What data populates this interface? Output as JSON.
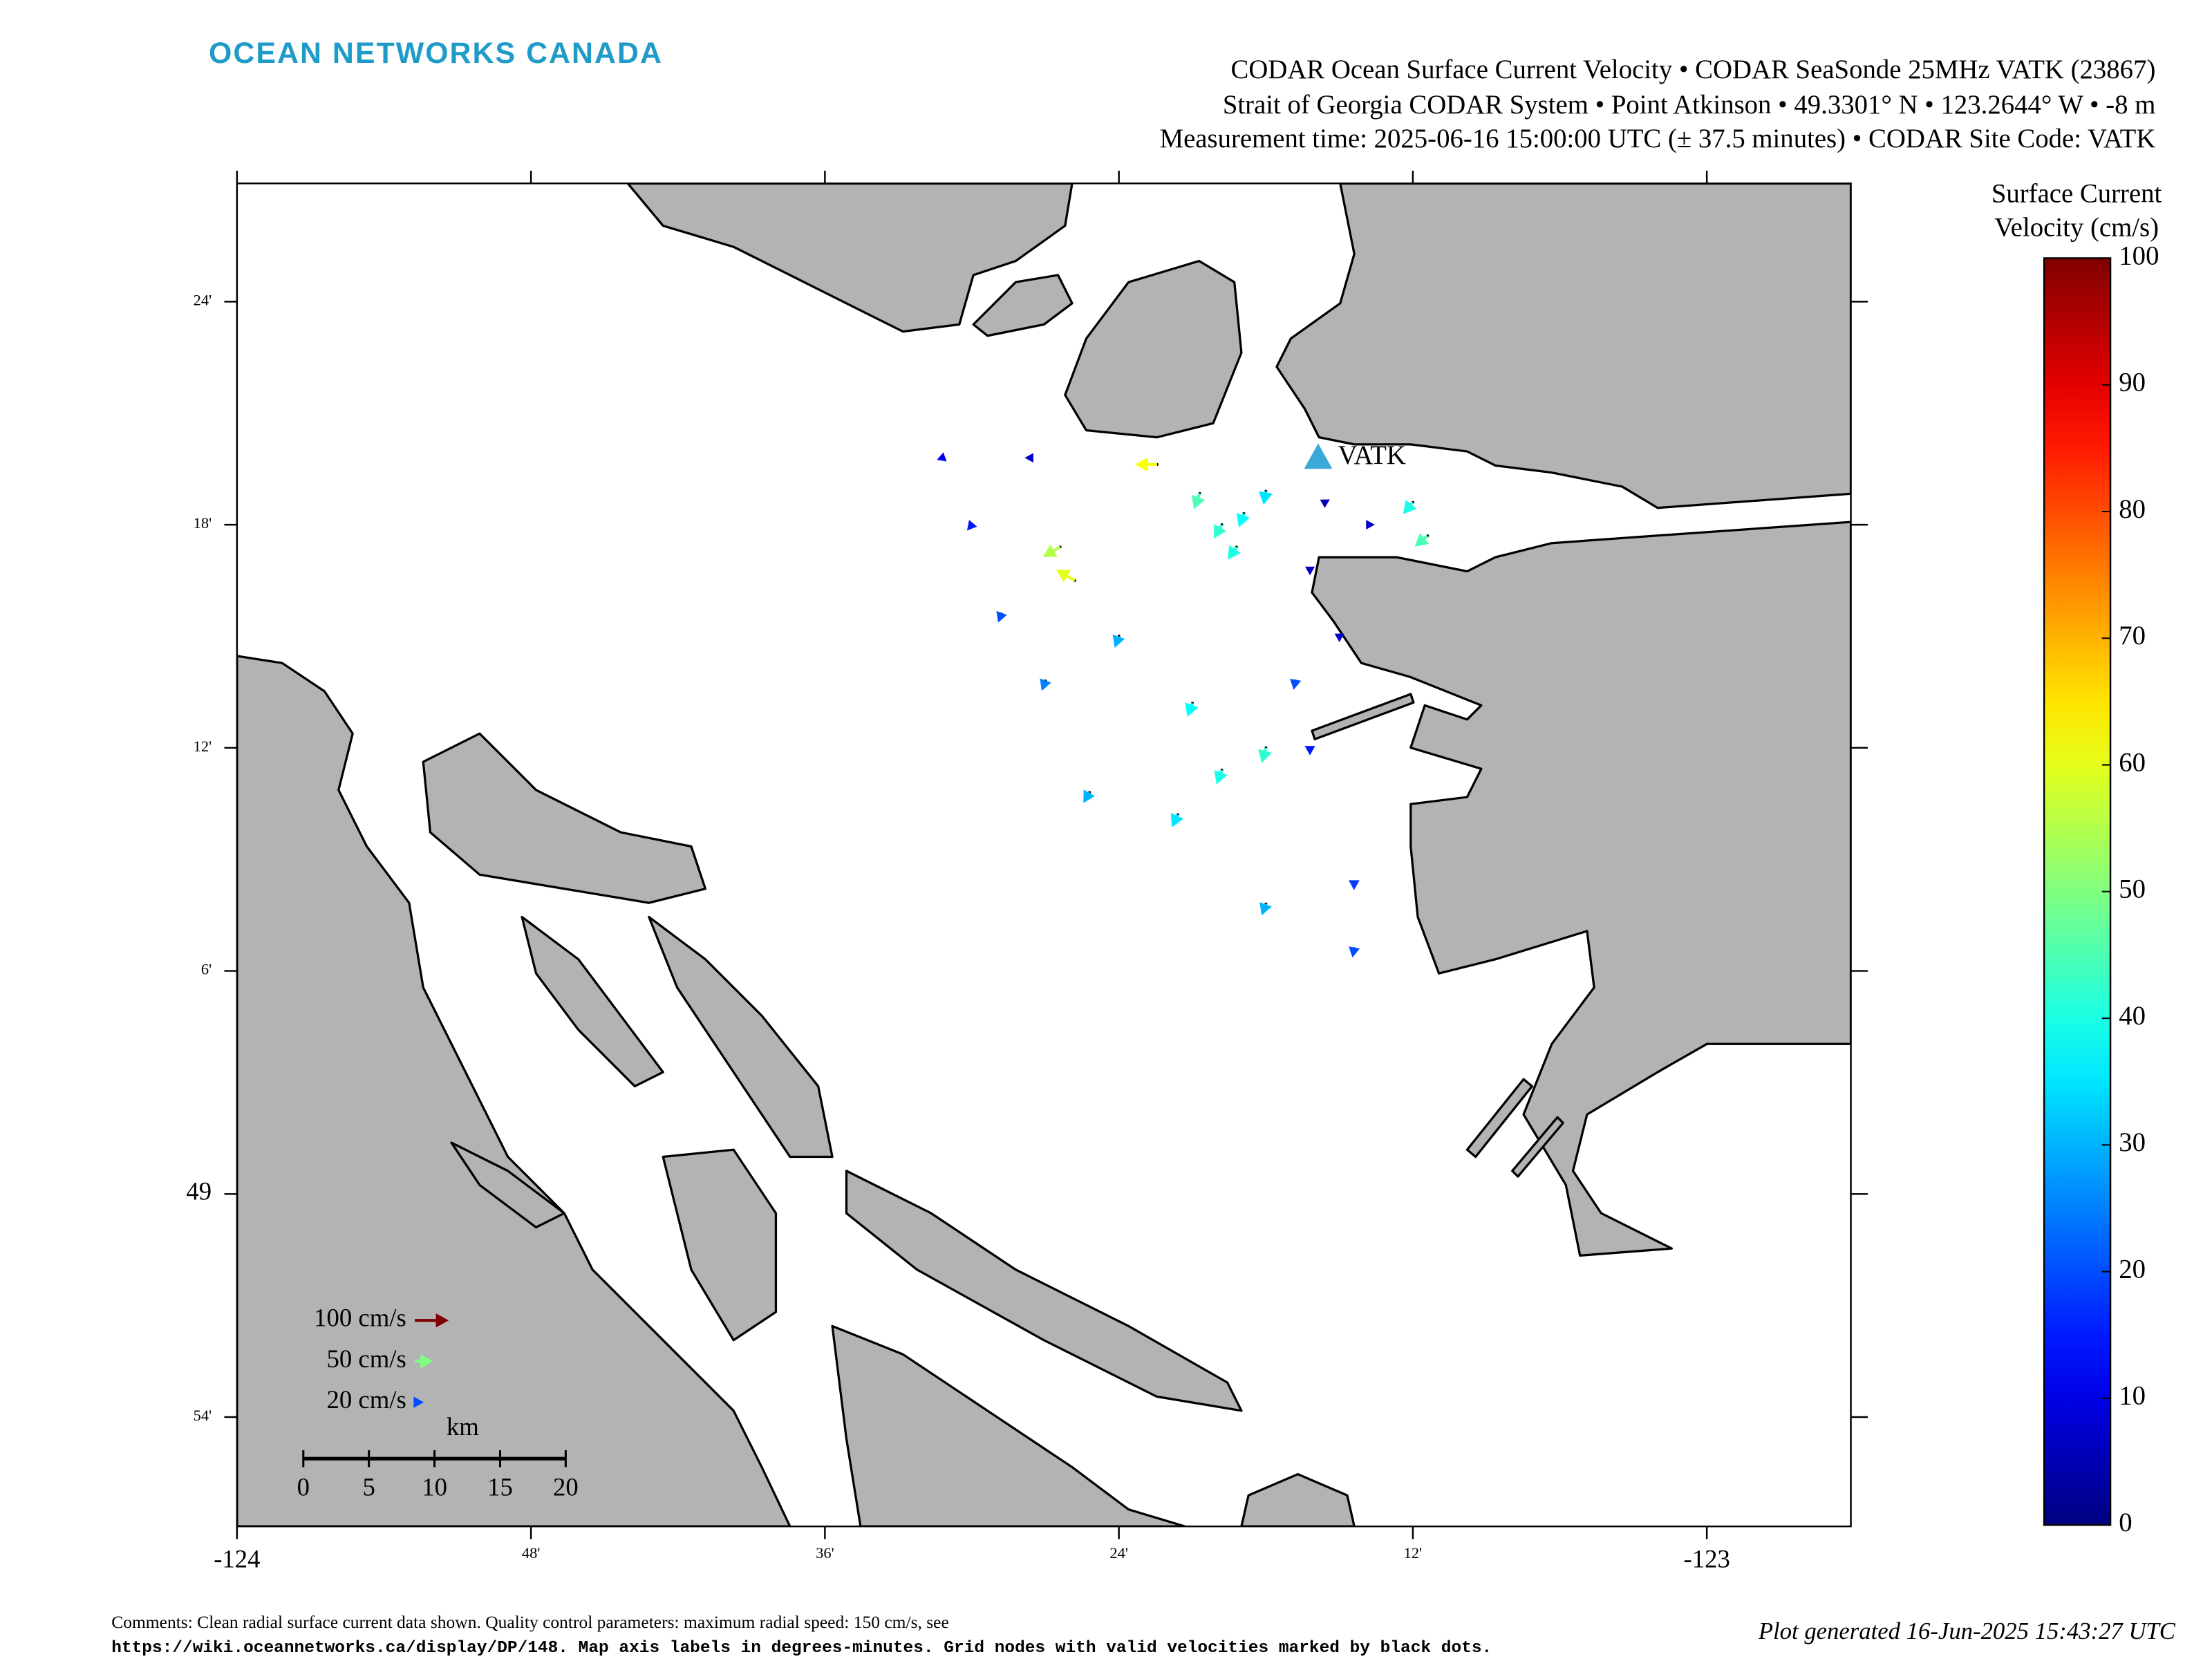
{
  "header": {
    "brand": "OCEAN NETWORKS CANADA",
    "title_lines": [
      "CODAR Ocean Surface Current Velocity • CODAR SeaSonde 25MHz VATK (23867)",
      "Strait of Georgia CODAR System • Point Atkinson • 49.3301° N • 123.2644° W • -8 m",
      "Measurement time: 2025-06-16 15:00:00 UTC (± 37.5 minutes) • CODAR Site Code: VATK"
    ]
  },
  "map": {
    "xlim": [
      -124,
      -122.902
    ],
    "ylim": [
      48.851,
      49.453
    ],
    "xticks": [
      -124,
      {
        "value": -123.8,
        "label": "48'"
      },
      {
        "value": -123.6,
        "label": "36'"
      },
      {
        "value": -123.4,
        "label": "24'"
      },
      {
        "value": -123.2,
        "label": "12'"
      },
      -123
    ],
    "yticks": [
      {
        "value": 48.9,
        "label": "54'"
      },
      49,
      {
        "value": 49.1,
        "label": "6'"
      },
      {
        "value": 49.2,
        "label": "12'"
      },
      {
        "value": 49.3,
        "label": "18'"
      },
      {
        "value": 49.4,
        "label": "24'"
      }
    ],
    "site": {
      "label": "VATK",
      "lon": -123.2644,
      "lat": 49.3301
    },
    "vectors": {
      "lon": [
        -123.345,
        -123.33,
        -123.315,
        -123.3,
        -123.374,
        -123.2,
        -123.19,
        -123.4,
        -123.35,
        -123.33,
        -123.36,
        -123.3,
        -123.28,
        -123.42,
        -123.45,
        -123.48,
        -123.5,
        -123.44,
        -123.43,
        -123.25,
        -123.27,
        -123.23,
        -123.26,
        -123.24,
        -123.24,
        -123.3,
        -123.27,
        -123.52,
        -123.46,
        -123.32
      ],
      "lat": [
        49.314,
        49.3,
        49.305,
        49.315,
        49.327,
        49.31,
        49.295,
        49.25,
        49.22,
        49.19,
        49.17,
        49.2,
        49.23,
        49.18,
        49.23,
        49.26,
        49.3,
        49.29,
        49.275,
        49.25,
        49.28,
        49.3,
        49.31,
        49.14,
        49.11,
        49.13,
        49.2,
        49.33,
        49.33,
        49.29
      ],
      "speed": [
        45,
        42,
        38,
        35,
        62,
        40,
        45,
        30,
        38,
        40,
        35,
        42,
        20,
        30,
        25,
        20,
        15,
        55,
        60,
        8,
        6,
        7,
        5,
        18,
        20,
        30,
        15,
        10,
        8,
        40
      ],
      "direction": [
        200,
        210,
        200,
        190,
        270,
        220,
        230,
        200,
        200,
        200,
        205,
        195,
        190,
        210,
        200,
        200,
        220,
        240,
        300,
        180,
        180,
        90,
        60,
        180,
        190,
        200,
        180,
        250,
        270,
        215
      ]
    }
  },
  "legend": {
    "entries": [
      {
        "value": 100,
        "label": "100 cm/s"
      },
      {
        "value": 50,
        "label": "50 cm/s"
      },
      {
        "value": 20,
        "label": "20 cm/s"
      }
    ]
  },
  "scale_bar": {
    "unit": "km",
    "ticks": [
      0,
      5,
      10,
      15,
      20
    ]
  },
  "colorbar": {
    "title_lines": [
      "Surface Current",
      "Velocity (cm/s)"
    ],
    "lim": [
      0,
      100
    ],
    "ticks": [
      0,
      10,
      20,
      30,
      40,
      50,
      60,
      70,
      80,
      90,
      100
    ]
  },
  "footer": {
    "comments": [
      "Comments: Clean radial surface current data shown. Quality control parameters: maximum radial speed: 150 cm/s, see",
      "https://wiki.oceannetworks.ca/display/DP/148. Map axis labels in degrees-minutes. Grid nodes with valid velocities marked by black dots."
    ],
    "generated": "Plot generated 16-Jun-2025 15:43:27 UTC"
  }
}
